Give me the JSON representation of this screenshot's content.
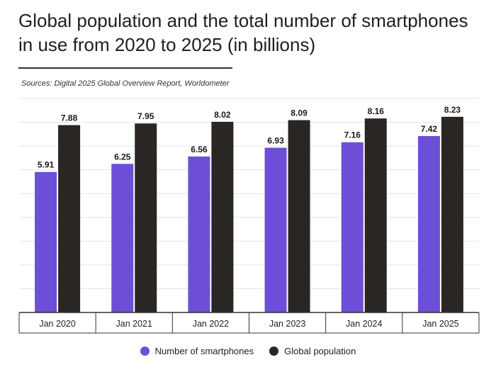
{
  "title": "Global population and the total number of smartphones in use from 2020 to 2025 (in billions)",
  "source": "Sources: Digital 2025 Global Overview Report, Worldometer",
  "chart_data": {
    "type": "bar",
    "title": "Global population and the total number of smartphones in use from 2020 to 2025 (in billions)",
    "xlabel": "",
    "ylabel": "",
    "ylim": [
      0,
      9
    ],
    "grid": true,
    "categories": [
      "Jan 2020",
      "Jan 2021",
      "Jan 2022",
      "Jan 2023",
      "Jan 2024",
      "Jan 2025"
    ],
    "series": [
      {
        "name": "Number of smartphones",
        "color": "#6c4fd6",
        "values": [
          5.91,
          6.25,
          6.56,
          6.93,
          7.16,
          7.42
        ]
      },
      {
        "name": "Global population",
        "color": "#2a2624",
        "values": [
          7.88,
          7.95,
          8.02,
          8.09,
          8.16,
          8.23
        ]
      }
    ],
    "legend": "bottom-center"
  }
}
